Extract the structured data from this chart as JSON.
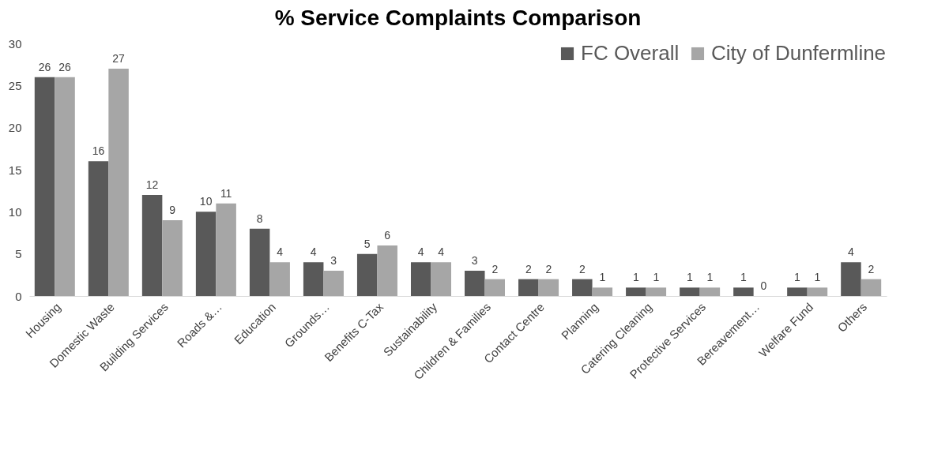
{
  "chart_data": {
    "type": "bar",
    "title": "% Service Complaints Comparison",
    "categories": [
      "Housing",
      "Domestic Waste",
      "Building Services",
      "Roads &…",
      "Education",
      "Grounds…",
      "Benefits C-Tax",
      "Sustainability",
      "Children & Families",
      "Contact Centre",
      "Planning",
      "Catering Cleaning",
      "Protective Services",
      "Bereavement…",
      "Welfare Fund",
      "Others"
    ],
    "series": [
      {
        "name": "FC Overall",
        "color": "#595959",
        "values": [
          26,
          16,
          12,
          10,
          8,
          4,
          5,
          4,
          3,
          2,
          2,
          1,
          1,
          1,
          1,
          4
        ]
      },
      {
        "name": "City of Dunfermline",
        "color": "#a6a6a6",
        "values": [
          26,
          27,
          9,
          11,
          4,
          3,
          6,
          4,
          2,
          2,
          1,
          1,
          1,
          0,
          1,
          2
        ]
      }
    ],
    "ylim": [
      0,
      30
    ],
    "yticks": [
      0,
      5,
      10,
      15,
      20,
      25,
      30
    ],
    "grid": false,
    "legend": "top right",
    "data_labels": true
  }
}
